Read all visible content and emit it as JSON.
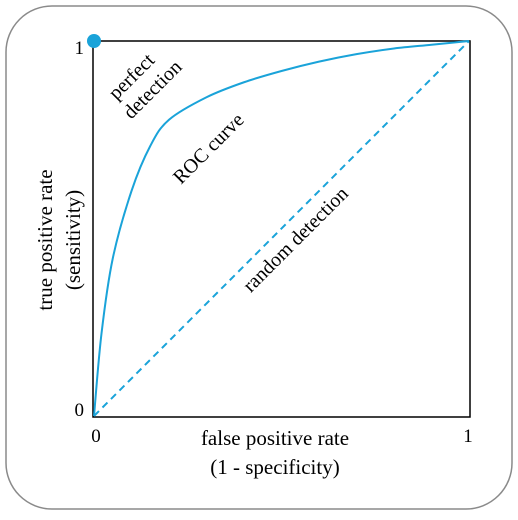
{
  "diagram": {
    "y_axis": {
      "label_line1": "true positive rate",
      "label_line2": "(sensitivity)",
      "tick_top": "1",
      "tick_bottom": "0"
    },
    "x_axis": {
      "label_line1": "false positive rate",
      "label_line2": "(1 - specificity)",
      "tick_left": "0",
      "tick_right": "1"
    },
    "annotations": {
      "perfect_line1": "perfect",
      "perfect_line2": "detection",
      "roc_curve": "ROC curve",
      "random": "random detection"
    },
    "colors": {
      "curve": "#1aa3d9",
      "frame": "#000000",
      "card_border": "#8a8a8a"
    }
  },
  "chart_data": {
    "type": "line",
    "title": "",
    "xlabel": "false positive rate (1 - specificity)",
    "ylabel": "true positive rate (sensitivity)",
    "xlim": [
      0,
      1
    ],
    "ylim": [
      0,
      1
    ],
    "grid": false,
    "series": [
      {
        "name": "ROC curve",
        "style": "solid",
        "x": [
          0,
          0.02,
          0.05,
          0.1,
          0.15,
          0.2,
          0.3,
          0.4,
          0.5,
          0.6,
          0.7,
          0.8,
          0.9,
          1.0
        ],
        "y": [
          0,
          0.22,
          0.42,
          0.6,
          0.72,
          0.79,
          0.85,
          0.89,
          0.92,
          0.945,
          0.965,
          0.98,
          0.99,
          1.0
        ]
      },
      {
        "name": "random detection",
        "style": "dashed",
        "x": [
          0,
          1
        ],
        "y": [
          0,
          1
        ]
      }
    ],
    "points": [
      {
        "name": "perfect detection",
        "x": 0,
        "y": 1
      }
    ]
  }
}
